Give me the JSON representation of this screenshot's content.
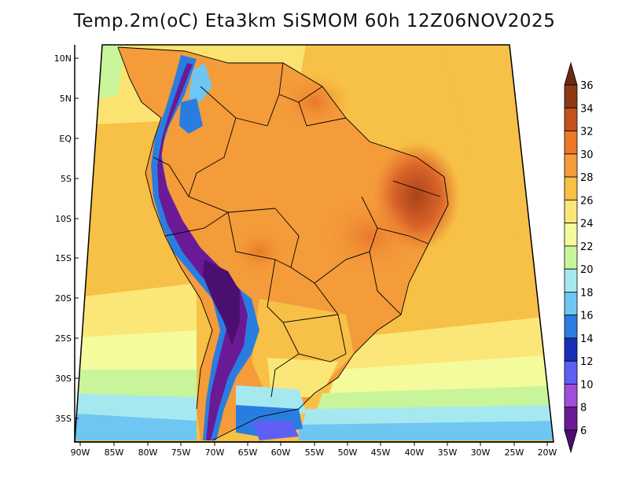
{
  "title": "Temp.2m(oC) Eta3km SiSMOM 60h 12Z06NOV2025",
  "map": {
    "lat_labels": [
      "10N",
      "5N",
      "EQ",
      "5S",
      "10S",
      "15S",
      "20S",
      "25S",
      "30S",
      "35S"
    ],
    "lon_labels": [
      "90W",
      "85W",
      "80W",
      "75W",
      "70W",
      "65W",
      "60W",
      "55W",
      "50W",
      "45W",
      "40W",
      "35W",
      "30W",
      "25W",
      "20W"
    ]
  },
  "colorbar": {
    "labels": [
      "36",
      "34",
      "32",
      "30",
      "28",
      "26",
      "24",
      "22",
      "20",
      "18",
      "16",
      "14",
      "12",
      "10",
      "8",
      "6"
    ],
    "colors": [
      "#6b2a12",
      "#8c3a14",
      "#c2521d",
      "#e9782a",
      "#f49b3a",
      "#f7c046",
      "#fbe777",
      "#f4fb9c",
      "#c8f59a",
      "#a6e8ef",
      "#6fc6f2",
      "#2a7de0",
      "#1a2fb8",
      "#5f5ff3",
      "#a04fd8",
      "#6a1a96",
      "#4b0f72"
    ]
  }
}
